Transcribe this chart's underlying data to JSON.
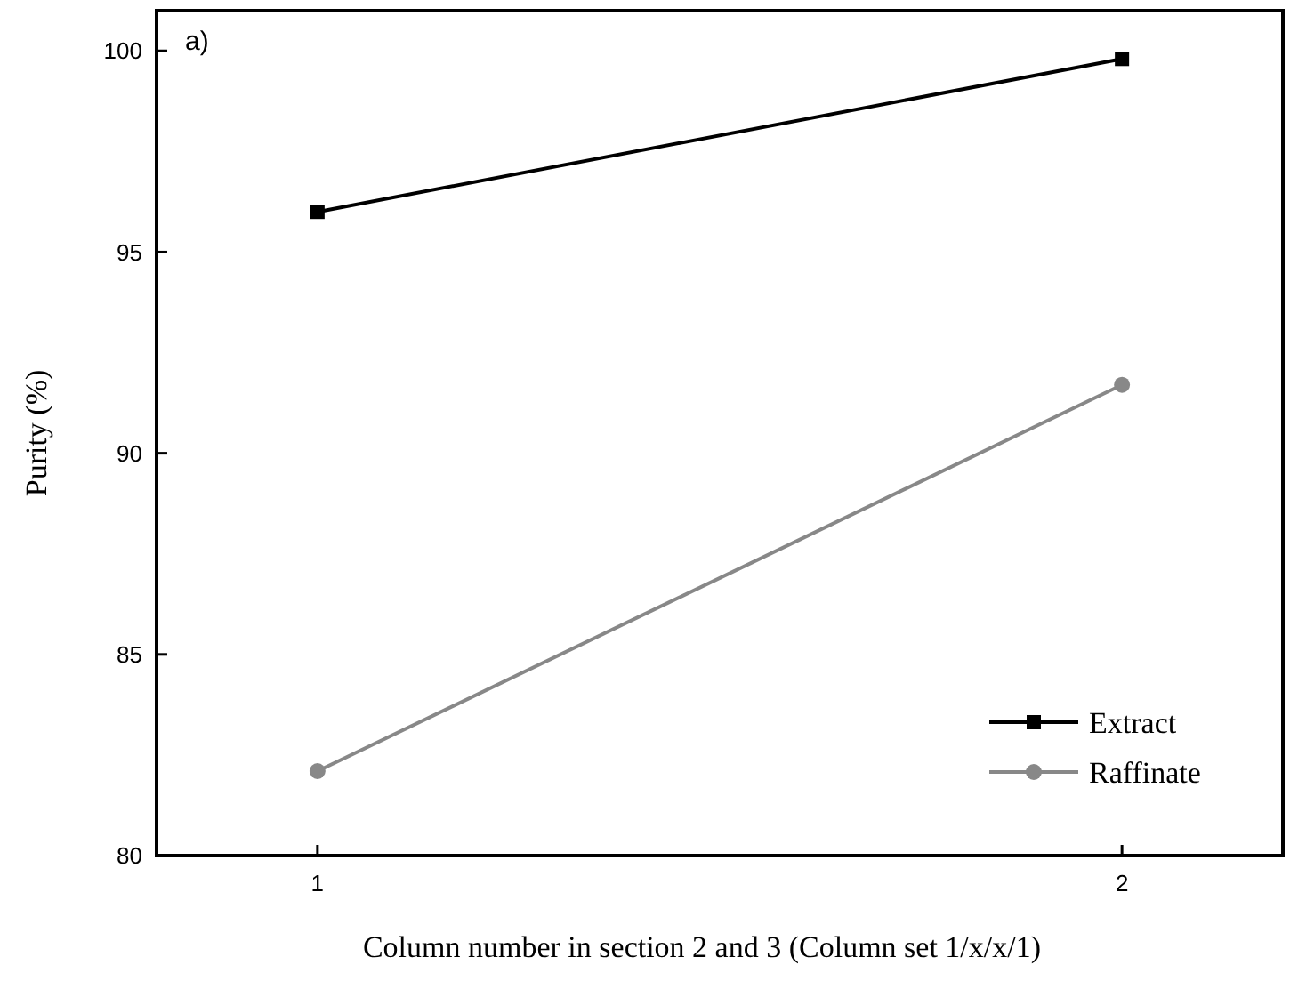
{
  "chart_data": {
    "type": "line",
    "xlabel": "Column number in section 2 and 3 (Column set 1/x/x/1)",
    "ylabel": "Purity (%)",
    "annotations": [
      "a)"
    ],
    "x": [
      1,
      2
    ],
    "xlim": [
      0.8,
      2.2
    ],
    "xticks": [
      1,
      2
    ],
    "ylim": [
      80,
      101
    ],
    "yticks": [
      80,
      85,
      90,
      95,
      100
    ],
    "grid": false,
    "legend": "bottom right",
    "series": [
      {
        "name": "Extract",
        "color": "#000000",
        "marker": "square",
        "values": [
          96.0,
          99.8
        ]
      },
      {
        "name": "Raffinate",
        "color": "#888888",
        "marker": "circle",
        "values": [
          82.1,
          91.7
        ]
      }
    ]
  }
}
